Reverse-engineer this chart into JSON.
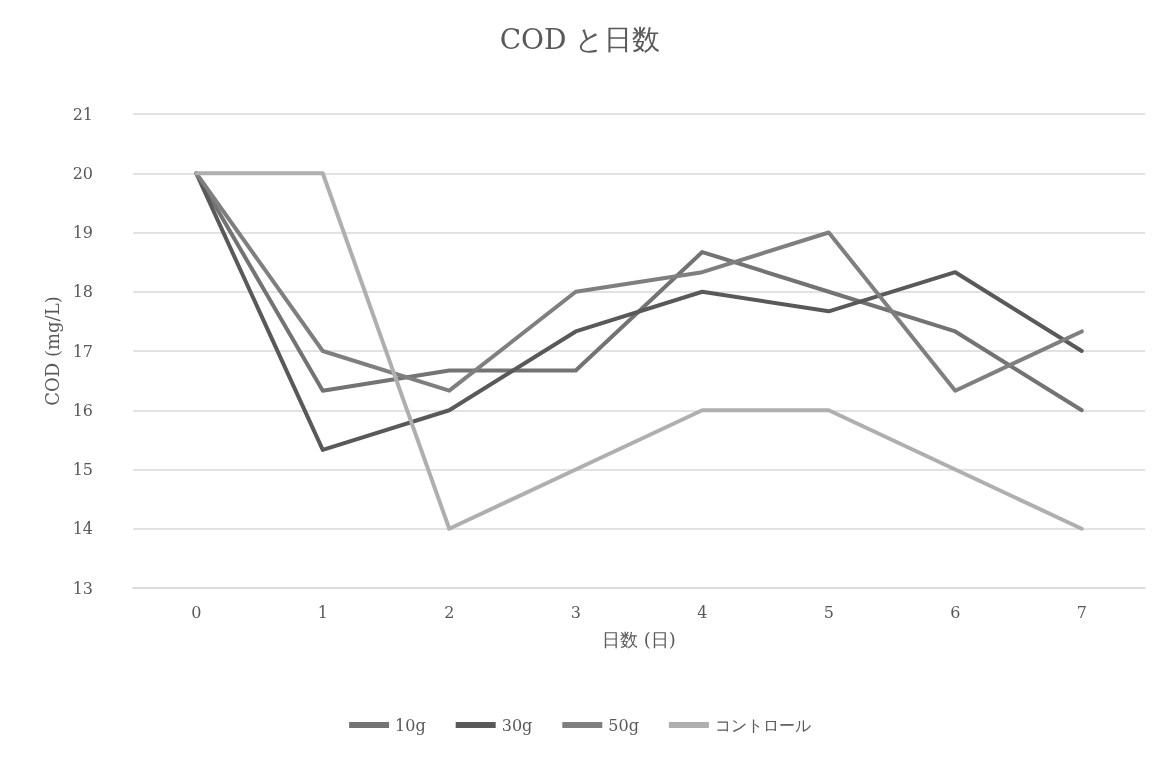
{
  "chart_data": {
    "type": "line",
    "title": "COD と日数",
    "xlabel": "日数 (日)",
    "ylabel": "COD (mg/L)",
    "categories": [
      "0",
      "1",
      "2",
      "3",
      "4",
      "5",
      "6",
      "7"
    ],
    "series": [
      {
        "name": "10g",
        "color": "#737373",
        "values": [
          20,
          16.33,
          16.67,
          16.67,
          18.67,
          18,
          17.33,
          16
        ]
      },
      {
        "name": "30g",
        "color": "#595959",
        "values": [
          20,
          15.33,
          16,
          17.33,
          18,
          17.67,
          18.33,
          17
        ]
      },
      {
        "name": "50g",
        "color": "#7f7f7f",
        "values": [
          20,
          17,
          16.33,
          18,
          18.33,
          19,
          16.33,
          17.33
        ]
      },
      {
        "name": "コントロール",
        "color": "#afafaf",
        "values": [
          20,
          20,
          14,
          15,
          16,
          16,
          15,
          14
        ]
      }
    ],
    "ylim": [
      13,
      21
    ],
    "yticks": [
      13,
      14,
      15,
      16,
      17,
      18,
      19,
      20,
      21
    ],
    "grid": "y",
    "legend": "bottom",
    "marker": "none",
    "line_style": "solid"
  }
}
